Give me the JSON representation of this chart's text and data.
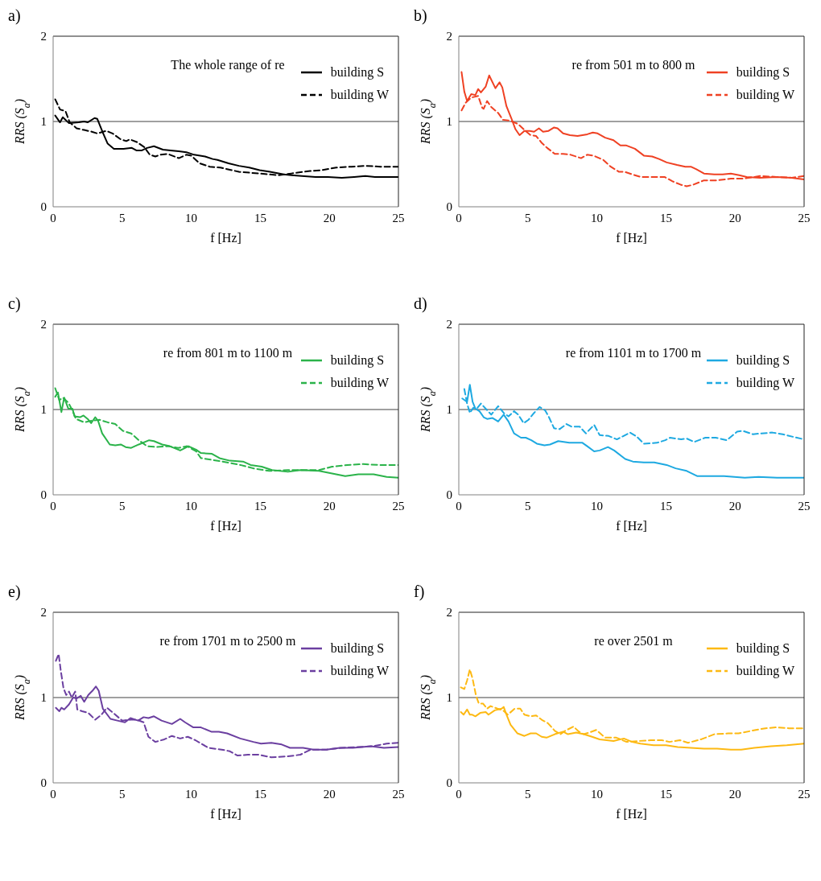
{
  "chart_data": [
    {
      "type": "line",
      "title": "a)",
      "subtitle": "The whole range of re",
      "xlabel": "f [Hz]",
      "ylabel": "RRS (S$_{a}$)",
      "xlim": [
        0,
        25
      ],
      "xticks": [
        0,
        5,
        10,
        15,
        20,
        25
      ],
      "ylim": [
        0,
        2
      ],
      "yticks": [
        0,
        1,
        2
      ],
      "legend": "right",
      "ref_lines": [
        {
          "axis": "y",
          "value": 1,
          "color": "#808080"
        }
      ],
      "series": [
        {
          "name": "building S",
          "color": "#000000",
          "line_style": "solid",
          "x": [
            0.15,
            0.5,
            0.7,
            1.15,
            1.85,
            2.25,
            2.5,
            3.0,
            3.2,
            3.6,
            3.95,
            4.4,
            5.1,
            5.7,
            6.05,
            6.4,
            6.8,
            7.3,
            7.95,
            8.5,
            9.1,
            9.65,
            10.2,
            11,
            11.55,
            11.9,
            12.7,
            13.45,
            14.2,
            14.95,
            15.7,
            16.7,
            17.25,
            18.0,
            19.0,
            19.9,
            20.9,
            21.8,
            22.6,
            23.3,
            25
          ],
          "values": [
            1.07,
            0.99,
            1.05,
            0.98,
            0.99,
            1.0,
            0.99,
            1.04,
            1.03,
            0.87,
            0.74,
            0.68,
            0.68,
            0.69,
            0.66,
            0.66,
            0.69,
            0.71,
            0.67,
            0.66,
            0.65,
            0.64,
            0.61,
            0.59,
            0.56,
            0.55,
            0.51,
            0.48,
            0.46,
            0.43,
            0.41,
            0.38,
            0.37,
            0.36,
            0.35,
            0.35,
            0.34,
            0.35,
            0.36,
            0.35,
            0.35
          ]
        },
        {
          "name": "building W",
          "color": "#000000",
          "line_style": "dashed",
          "x": [
            0.15,
            0.5,
            0.9,
            1.2,
            1.7,
            2.25,
            2.8,
            3.2,
            3.85,
            4.3,
            4.9,
            5.3,
            5.55,
            6.05,
            6.6,
            7.0,
            7.4,
            7.75,
            8.3,
            9.1,
            9.65,
            10.0,
            10.6,
            11.35,
            12.1,
            13.45,
            14.95,
            16.3,
            17.25,
            18.6,
            19.5,
            20.5,
            21.6,
            22.6,
            23.7,
            25
          ],
          "values": [
            1.26,
            1.14,
            1.12,
            0.99,
            0.92,
            0.9,
            0.88,
            0.86,
            0.89,
            0.86,
            0.79,
            0.77,
            0.79,
            0.76,
            0.7,
            0.61,
            0.59,
            0.61,
            0.62,
            0.57,
            0.61,
            0.6,
            0.51,
            0.47,
            0.46,
            0.41,
            0.39,
            0.37,
            0.39,
            0.42,
            0.43,
            0.46,
            0.47,
            0.48,
            0.47,
            0.47
          ]
        }
      ]
    },
    {
      "type": "line",
      "title": "b)",
      "subtitle": "re from 501 m to 800 m",
      "xlabel": "f [Hz]",
      "ylabel": "RRS (S$_{a}$)",
      "xlim": [
        0,
        25
      ],
      "xticks": [
        0,
        5,
        10,
        15,
        20,
        25
      ],
      "ylim": [
        0,
        2
      ],
      "yticks": [
        0,
        1,
        2
      ],
      "legend": "right",
      "ref_lines": [
        {
          "axis": "y",
          "value": 1,
          "color": "#808080"
        }
      ],
      "series": [
        {
          "name": "building S",
          "color": "#ef4123",
          "line_style": "solid",
          "x": [
            0.2,
            0.4,
            0.6,
            0.9,
            1.2,
            1.4,
            1.6,
            1.95,
            2.2,
            2.65,
            2.95,
            3.15,
            3.45,
            3.8,
            4.1,
            4.4,
            4.75,
            5.15,
            5.45,
            5.8,
            6.1,
            6.5,
            6.9,
            7.15,
            7.55,
            8.05,
            8.6,
            9.3,
            9.7,
            10.05,
            10.6,
            11.2,
            11.7,
            12.1,
            12.75,
            13.4,
            14.0,
            14.5,
            15.05,
            15.8,
            16.4,
            16.8,
            17.2,
            17.75,
            18.5,
            19.1,
            19.7,
            20.3,
            20.85,
            21.8,
            23.0,
            24.1,
            25
          ],
          "values": [
            1.58,
            1.35,
            1.24,
            1.32,
            1.31,
            1.38,
            1.34,
            1.41,
            1.54,
            1.39,
            1.46,
            1.4,
            1.18,
            1.04,
            0.91,
            0.84,
            0.89,
            0.89,
            0.88,
            0.92,
            0.88,
            0.89,
            0.93,
            0.92,
            0.86,
            0.84,
            0.83,
            0.85,
            0.87,
            0.86,
            0.81,
            0.78,
            0.72,
            0.72,
            0.68,
            0.6,
            0.59,
            0.56,
            0.52,
            0.49,
            0.47,
            0.47,
            0.44,
            0.39,
            0.38,
            0.38,
            0.39,
            0.37,
            0.35,
            0.34,
            0.35,
            0.34,
            0.32
          ]
        },
        {
          "name": "building W",
          "color": "#ef4123",
          "line_style": "dashed",
          "x": [
            0.2,
            0.5,
            0.9,
            1.4,
            1.7,
            1.8,
            2.05,
            2.35,
            2.85,
            3.2,
            3.7,
            4.3,
            4.75,
            5.2,
            5.6,
            6.0,
            6.4,
            6.95,
            7.55,
            8.1,
            8.85,
            9.3,
            9.75,
            10.45,
            11.0,
            11.6,
            12.0,
            12.55,
            13.15,
            14.1,
            14.9,
            15.45,
            16.05,
            16.5,
            17.0,
            17.75,
            18.7,
            19.7,
            20.6,
            21.8,
            23.0,
            24.1,
            25
          ],
          "values": [
            1.13,
            1.22,
            1.28,
            1.3,
            1.16,
            1.15,
            1.24,
            1.17,
            1.1,
            1.02,
            1.01,
            0.97,
            0.9,
            0.84,
            0.83,
            0.75,
            0.69,
            0.62,
            0.62,
            0.61,
            0.57,
            0.61,
            0.6,
            0.55,
            0.47,
            0.41,
            0.41,
            0.38,
            0.35,
            0.35,
            0.35,
            0.3,
            0.26,
            0.24,
            0.26,
            0.31,
            0.31,
            0.33,
            0.33,
            0.36,
            0.35,
            0.34,
            0.36
          ]
        }
      ]
    },
    {
      "type": "line",
      "title": "c)",
      "subtitle": "re from 801 m to 1100 m",
      "xlabel": "f [Hz]",
      "ylabel": "RRS (S$_{a}$)",
      "xlim": [
        0,
        25
      ],
      "xticks": [
        0,
        5,
        10,
        15,
        20,
        25
      ],
      "ylim": [
        0,
        2
      ],
      "yticks": [
        0,
        1,
        2
      ],
      "legend": "right",
      "ref_lines": [
        {
          "axis": "y",
          "value": 1,
          "color": "#808080"
        }
      ],
      "series": [
        {
          "name": "building S",
          "color": "#2bb34a",
          "line_style": "solid",
          "x": [
            0.15,
            0.35,
            0.6,
            0.8,
            1.1,
            1.4,
            1.55,
            1.95,
            2.2,
            2.5,
            2.75,
            3.05,
            3.25,
            3.55,
            4.1,
            4.5,
            4.9,
            5.25,
            5.65,
            6.2,
            6.95,
            7.3,
            7.9,
            8.45,
            9.2,
            9.8,
            10.35,
            10.7,
            11.5,
            12.05,
            12.8,
            13.75,
            14.3,
            15.1,
            15.85,
            17.0,
            17.9,
            19.25,
            20.2,
            21.15,
            22.1,
            23.2,
            24.15,
            25
          ],
          "values": [
            1.15,
            1.2,
            0.97,
            1.14,
            1.01,
            1.01,
            0.92,
            0.91,
            0.93,
            0.89,
            0.84,
            0.91,
            0.87,
            0.72,
            0.59,
            0.58,
            0.59,
            0.56,
            0.55,
            0.59,
            0.64,
            0.63,
            0.59,
            0.57,
            0.52,
            0.57,
            0.53,
            0.49,
            0.48,
            0.43,
            0.4,
            0.39,
            0.35,
            0.33,
            0.29,
            0.27,
            0.29,
            0.28,
            0.25,
            0.22,
            0.24,
            0.24,
            0.21,
            0.2
          ]
        },
        {
          "name": "building W",
          "color": "#2bb34a",
          "line_style": "dashed",
          "x": [
            0.15,
            0.45,
            0.7,
            1.1,
            1.4,
            1.65,
            2.25,
            2.8,
            3.35,
            3.95,
            4.5,
            5.05,
            5.65,
            6.2,
            6.8,
            7.5,
            8.3,
            9.05,
            9.7,
            10.35,
            10.7,
            11.5,
            12.6,
            13.55,
            14.5,
            15.65,
            17.0,
            17.9,
            19.25,
            20.2,
            21.3,
            22.45,
            23.6,
            25
          ],
          "values": [
            1.25,
            1.11,
            1.14,
            1.08,
            0.99,
            0.89,
            0.85,
            0.87,
            0.88,
            0.85,
            0.83,
            0.75,
            0.72,
            0.64,
            0.57,
            0.56,
            0.57,
            0.55,
            0.57,
            0.51,
            0.43,
            0.41,
            0.38,
            0.35,
            0.31,
            0.28,
            0.29,
            0.29,
            0.29,
            0.33,
            0.35,
            0.36,
            0.35,
            0.35
          ]
        }
      ]
    },
    {
      "type": "line",
      "title": "d)",
      "subtitle": "re from 1101 m to 1700 m",
      "xlabel": "f [Hz]",
      "ylabel": "RRS (S$_{a}$)",
      "xlim": [
        0,
        25
      ],
      "xticks": [
        0,
        5,
        10,
        15,
        20,
        25
      ],
      "ylim": [
        0,
        2
      ],
      "yticks": [
        0,
        1,
        2
      ],
      "legend": "right",
      "ref_lines": [
        {
          "axis": "y",
          "value": 1,
          "color": "#808080"
        }
      ],
      "series": [
        {
          "name": "building S",
          "color": "#1ea9e1",
          "line_style": "solid",
          "x": [
            0.25,
            0.6,
            0.8,
            1.0,
            1.2,
            1.5,
            1.8,
            2.05,
            2.45,
            2.85,
            3.25,
            3.6,
            4.0,
            4.5,
            4.85,
            5.25,
            5.65,
            6.2,
            6.6,
            7.2,
            8.0,
            8.95,
            9.3,
            9.8,
            10.2,
            10.8,
            11.25,
            12.05,
            12.6,
            13.4,
            14.15,
            15.05,
            15.7,
            16.5,
            17.25,
            17.85,
            19.2,
            20.7,
            21.7,
            23.05,
            24.2,
            25
          ],
          "values": [
            1.13,
            1.09,
            1.29,
            1.09,
            1.01,
            0.98,
            0.91,
            0.89,
            0.9,
            0.86,
            0.94,
            0.86,
            0.72,
            0.67,
            0.67,
            0.64,
            0.6,
            0.58,
            0.59,
            0.63,
            0.61,
            0.61,
            0.57,
            0.51,
            0.52,
            0.56,
            0.52,
            0.42,
            0.39,
            0.38,
            0.38,
            0.35,
            0.31,
            0.28,
            0.22,
            0.22,
            0.22,
            0.2,
            0.21,
            0.2,
            0.2,
            0.2
          ]
        },
        {
          "name": "building W",
          "color": "#1ea9e1",
          "line_style": "dashed",
          "x": [
            0.4,
            0.6,
            0.8,
            1.05,
            1.3,
            1.6,
            1.95,
            2.35,
            2.85,
            3.25,
            3.6,
            4.0,
            4.3,
            4.7,
            5.05,
            5.45,
            5.85,
            6.25,
            6.5,
            6.9,
            7.3,
            7.8,
            8.15,
            8.75,
            9.2,
            9.8,
            10.2,
            10.85,
            11.45,
            12.4,
            12.9,
            13.4,
            14.35,
            14.95,
            15.3,
            16.1,
            16.5,
            17.05,
            17.85,
            18.6,
            19.4,
            20.15,
            20.55,
            21.3,
            21.9,
            22.7,
            23.45,
            24.2,
            25
          ],
          "values": [
            1.24,
            1.07,
            0.96,
            1.02,
            1.01,
            1.07,
            1.01,
            0.94,
            1.04,
            0.96,
            0.92,
            0.98,
            0.94,
            0.84,
            0.88,
            0.96,
            1.03,
            0.99,
            0.92,
            0.78,
            0.77,
            0.83,
            0.8,
            0.8,
            0.72,
            0.82,
            0.7,
            0.69,
            0.65,
            0.73,
            0.68,
            0.6,
            0.61,
            0.64,
            0.67,
            0.65,
            0.66,
            0.62,
            0.67,
            0.67,
            0.64,
            0.74,
            0.75,
            0.71,
            0.72,
            0.73,
            0.71,
            0.68,
            0.65
          ]
        }
      ]
    },
    {
      "type": "line",
      "title": "e)",
      "subtitle": "re from 1701 m to 2500 m",
      "xlabel": "f [Hz]",
      "ylabel": "RRS (S$_{a}$)",
      "xlim": [
        0,
        25
      ],
      "xticks": [
        0,
        5,
        10,
        15,
        20,
        25
      ],
      "ylim": [
        0,
        2
      ],
      "yticks": [
        0,
        1,
        2
      ],
      "legend": "right",
      "ref_lines": [
        {
          "axis": "y",
          "value": 1,
          "color": "#808080"
        }
      ],
      "series": [
        {
          "name": "building S",
          "color": "#6b3fa0",
          "line_style": "solid",
          "x": [
            0.2,
            0.45,
            0.6,
            0.8,
            1.15,
            1.45,
            1.7,
            2.0,
            2.25,
            2.55,
            2.85,
            3.1,
            3.3,
            3.6,
            4.15,
            4.65,
            5.2,
            5.6,
            6.15,
            6.55,
            6.9,
            7.3,
            7.85,
            8.6,
            9.2,
            9.55,
            10.15,
            10.7,
            11.45,
            12.0,
            12.6,
            13.55,
            14.5,
            15.05,
            15.8,
            16.55,
            17.15,
            18.1,
            18.85,
            19.8,
            20.75,
            21.7,
            23.0,
            23.95,
            25
          ],
          "values": [
            0.88,
            0.84,
            0.88,
            0.86,
            0.92,
            1.0,
            0.99,
            1.02,
            0.95,
            1.03,
            1.08,
            1.13,
            1.08,
            0.87,
            0.75,
            0.73,
            0.71,
            0.76,
            0.73,
            0.77,
            0.76,
            0.78,
            0.73,
            0.69,
            0.75,
            0.71,
            0.65,
            0.65,
            0.6,
            0.6,
            0.58,
            0.52,
            0.48,
            0.46,
            0.47,
            0.45,
            0.41,
            0.41,
            0.39,
            0.39,
            0.41,
            0.41,
            0.43,
            0.41,
            0.42
          ]
        },
        {
          "name": "building W",
          "color": "#6b3fa0",
          "line_style": "dashed",
          "x": [
            0.2,
            0.4,
            0.55,
            0.75,
            0.95,
            1.15,
            1.35,
            1.6,
            1.75,
            2.1,
            2.55,
            3.05,
            3.5,
            3.9,
            4.35,
            5.0,
            5.6,
            6.05,
            6.55,
            6.9,
            7.4,
            8.05,
            8.6,
            9.2,
            9.75,
            10.3,
            11.25,
            12.2,
            12.8,
            13.35,
            14.1,
            14.85,
            15.8,
            16.95,
            17.9,
            18.65,
            19.8,
            20.9,
            22.05,
            23.2,
            24.15,
            25
          ],
          "values": [
            1.43,
            1.51,
            1.32,
            1.11,
            1.03,
            1.07,
            1.0,
            1.07,
            0.86,
            0.84,
            0.82,
            0.74,
            0.8,
            0.88,
            0.82,
            0.73,
            0.74,
            0.74,
            0.71,
            0.54,
            0.48,
            0.51,
            0.55,
            0.52,
            0.54,
            0.5,
            0.41,
            0.39,
            0.37,
            0.32,
            0.33,
            0.33,
            0.3,
            0.31,
            0.33,
            0.39,
            0.39,
            0.41,
            0.42,
            0.43,
            0.46,
            0.47
          ]
        }
      ]
    },
    {
      "type": "line",
      "title": "f)",
      "subtitle": "re over 2501 m",
      "xlabel": "f [Hz]",
      "ylabel": "RRS (S$_{a}$)",
      "xlim": [
        0,
        25
      ],
      "xticks": [
        0,
        5,
        10,
        15,
        20,
        25
      ],
      "ylim": [
        0,
        2
      ],
      "yticks": [
        0,
        1,
        2
      ],
      "legend": "right",
      "ref_lines": [
        {
          "axis": "y",
          "value": 1,
          "color": "#808080"
        }
      ],
      "series": [
        {
          "name": "building S",
          "color": "#fdb913",
          "line_style": "solid",
          "x": [
            0.15,
            0.35,
            0.6,
            0.8,
            0.95,
            1.2,
            1.55,
            1.95,
            2.15,
            2.6,
            3.1,
            3.25,
            3.45,
            3.75,
            4.25,
            4.75,
            5.2,
            5.6,
            6.0,
            6.35,
            6.95,
            7.55,
            7.9,
            8.5,
            9.05,
            9.65,
            10.2,
            11.2,
            11.95,
            12.55,
            13.15,
            14.1,
            15.0,
            15.85,
            16.8,
            17.75,
            18.7,
            19.7,
            20.45,
            21.4,
            22.6,
            23.75,
            25
          ],
          "values": [
            0.83,
            0.8,
            0.86,
            0.8,
            0.8,
            0.78,
            0.82,
            0.83,
            0.8,
            0.85,
            0.87,
            0.89,
            0.8,
            0.68,
            0.58,
            0.55,
            0.58,
            0.58,
            0.54,
            0.53,
            0.57,
            0.6,
            0.57,
            0.59,
            0.57,
            0.54,
            0.51,
            0.49,
            0.52,
            0.48,
            0.46,
            0.44,
            0.44,
            0.42,
            0.41,
            0.4,
            0.4,
            0.39,
            0.39,
            0.41,
            0.43,
            0.44,
            0.46
          ]
        },
        {
          "name": "building W",
          "color": "#fdb913",
          "line_style": "dashed",
          "x": [
            0.15,
            0.4,
            0.6,
            0.8,
            1.0,
            1.25,
            1.45,
            1.75,
            2.05,
            2.3,
            2.8,
            3.2,
            3.55,
            4.05,
            4.45,
            4.75,
            5.2,
            5.6,
            6.0,
            6.45,
            6.95,
            7.35,
            7.7,
            8.3,
            8.7,
            9.05,
            9.45,
            9.95,
            10.6,
            11.4,
            12.15,
            12.95,
            13.9,
            14.7,
            15.25,
            16.0,
            16.6,
            17.55,
            18.5,
            19.5,
            20.25,
            21.2,
            22.2,
            22.95,
            23.9,
            25
          ],
          "values": [
            1.12,
            1.1,
            1.2,
            1.33,
            1.22,
            1.02,
            0.93,
            0.93,
            0.87,
            0.9,
            0.87,
            0.85,
            0.8,
            0.87,
            0.87,
            0.8,
            0.78,
            0.79,
            0.74,
            0.7,
            0.61,
            0.57,
            0.61,
            0.66,
            0.6,
            0.57,
            0.59,
            0.62,
            0.53,
            0.53,
            0.48,
            0.49,
            0.5,
            0.5,
            0.48,
            0.5,
            0.47,
            0.51,
            0.57,
            0.58,
            0.58,
            0.61,
            0.64,
            0.65,
            0.64,
            0.64
          ]
        }
      ]
    }
  ]
}
